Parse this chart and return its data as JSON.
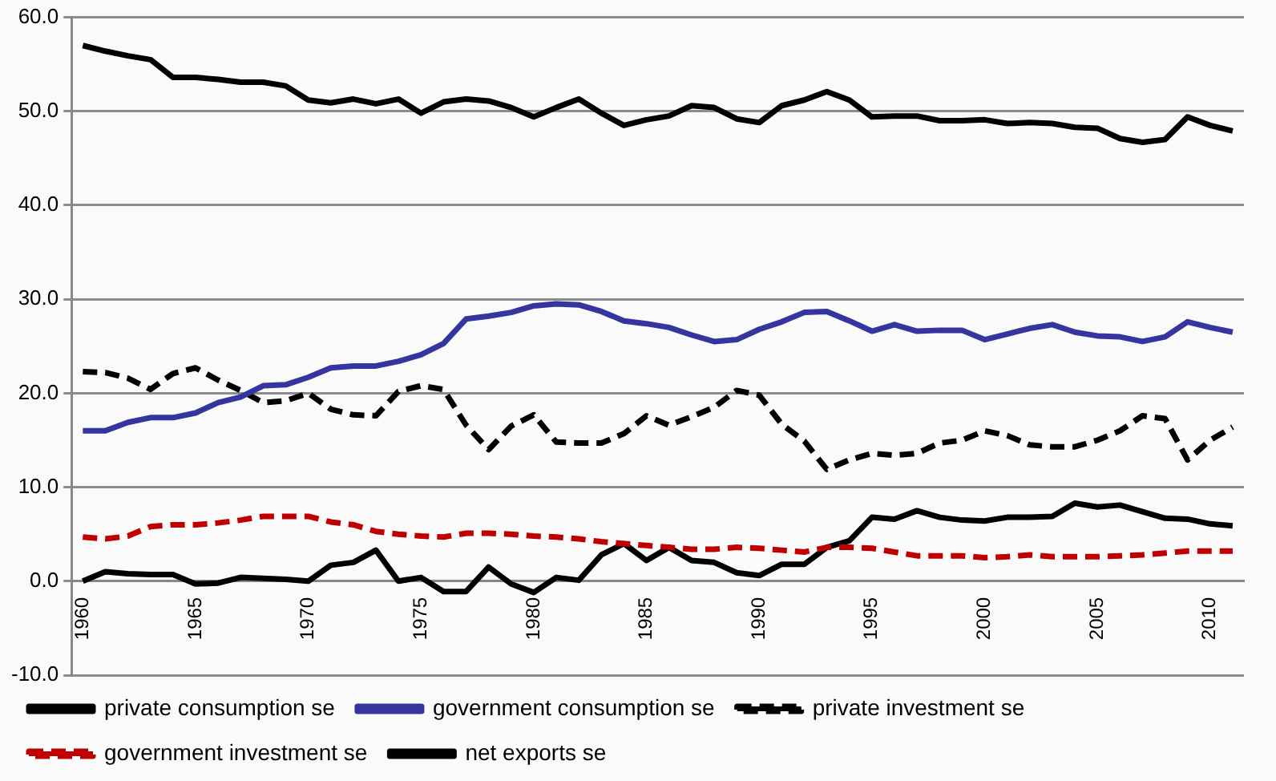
{
  "chart_data": {
    "type": "line",
    "categories": [
      "1960",
      null,
      null,
      null,
      null,
      "1965",
      null,
      null,
      null,
      null,
      "1970",
      null,
      null,
      null,
      null,
      "1975",
      null,
      null,
      null,
      null,
      "1980",
      null,
      null,
      null,
      null,
      "1985",
      null,
      null,
      null,
      null,
      "1990",
      null,
      null,
      null,
      null,
      "1995",
      null,
      null,
      null,
      null,
      "2000",
      null,
      null,
      null,
      null,
      "2005",
      null,
      null,
      null,
      null,
      "2010",
      null
    ],
    "series": [
      {
        "name": "private consumption se",
        "color": "#000000",
        "line_style": "solid",
        "values": [
          57.0,
          56.4,
          55.9,
          55.5,
          53.6,
          53.6,
          53.4,
          53.1,
          53.1,
          52.7,
          51.2,
          50.9,
          51.3,
          50.8,
          51.3,
          49.8,
          51.0,
          51.3,
          51.1,
          50.4,
          49.4,
          50.4,
          51.3,
          49.8,
          48.5,
          49.1,
          49.5,
          50.6,
          50.4,
          49.2,
          48.8,
          50.6,
          51.2,
          52.1,
          51.2,
          49.4,
          49.5,
          49.5,
          49.0,
          49.0,
          49.1,
          48.7,
          48.8,
          48.7,
          48.3,
          48.2,
          47.1,
          46.7,
          47.0,
          49.4,
          48.5,
          47.9
        ]
      },
      {
        "name": "government consumption se",
        "color": "#3535a0",
        "line_style": "solid",
        "values": [
          16.0,
          16.0,
          16.9,
          17.4,
          17.4,
          17.9,
          19.0,
          19.6,
          20.8,
          20.9,
          21.7,
          22.7,
          22.9,
          22.9,
          23.4,
          24.1,
          25.3,
          27.9,
          28.2,
          28.6,
          29.3,
          29.5,
          29.4,
          28.7,
          27.7,
          27.4,
          27.0,
          26.2,
          25.5,
          25.7,
          26.8,
          27.6,
          28.6,
          28.7,
          27.7,
          26.6,
          27.3,
          26.6,
          26.7,
          26.7,
          25.7,
          26.3,
          26.9,
          27.3,
          26.5,
          26.1,
          26.0,
          25.5,
          26.0,
          27.6,
          27.0,
          26.5
        ]
      },
      {
        "name": "private investment se",
        "color": "#000000",
        "line_style": "dashed",
        "values": [
          22.3,
          22.2,
          21.6,
          20.4,
          22.1,
          22.7,
          21.4,
          20.3,
          19.0,
          19.2,
          20.0,
          18.3,
          17.7,
          17.6,
          20.2,
          20.8,
          20.4,
          16.6,
          14.0,
          16.5,
          17.7,
          14.8,
          14.7,
          14.7,
          15.7,
          17.6,
          16.6,
          17.5,
          18.5,
          20.3,
          19.8,
          16.7,
          14.9,
          11.9,
          12.9,
          13.6,
          13.4,
          13.6,
          14.7,
          15.0,
          16.0,
          15.5,
          14.5,
          14.3,
          14.3,
          15.0,
          16.0,
          17.6,
          17.3,
          12.9,
          15.0,
          16.4
        ]
      },
      {
        "name": "government investment se",
        "color": "#c00000",
        "line_style": "dashed",
        "values": [
          4.7,
          4.5,
          4.8,
          5.8,
          6.0,
          6.0,
          6.2,
          6.5,
          6.9,
          6.9,
          6.9,
          6.3,
          6.0,
          5.3,
          5.0,
          4.8,
          4.7,
          5.1,
          5.1,
          5.0,
          4.8,
          4.7,
          4.5,
          4.2,
          4.0,
          3.8,
          3.6,
          3.4,
          3.4,
          3.6,
          3.5,
          3.3,
          3.1,
          3.6,
          3.6,
          3.5,
          3.1,
          2.7,
          2.7,
          2.7,
          2.5,
          2.6,
          2.8,
          2.6,
          2.6,
          2.6,
          2.7,
          2.8,
          3.0,
          3.2,
          3.2,
          3.2
        ]
      },
      {
        "name": "net exports se",
        "color": "#000000",
        "line_style": "solid",
        "values": [
          0.0,
          1.0,
          0.8,
          0.7,
          0.7,
          -0.3,
          -0.2,
          0.4,
          0.3,
          0.2,
          0.0,
          1.7,
          2.0,
          3.3,
          0.0,
          0.4,
          -1.1,
          -1.1,
          1.5,
          -0.3,
          -1.2,
          0.4,
          0.1,
          2.8,
          4.0,
          2.2,
          3.6,
          2.2,
          2.0,
          0.9,
          0.6,
          1.8,
          1.8,
          3.6,
          4.3,
          6.8,
          6.6,
          7.5,
          6.8,
          6.5,
          6.4,
          6.8,
          6.8,
          6.9,
          8.3,
          7.9,
          8.1,
          7.4,
          6.7,
          6.6,
          6.1,
          5.9
        ]
      }
    ],
    "ylim": [
      -10,
      60
    ],
    "yticks": [
      {
        "value": -10,
        "label": "-10.0"
      },
      {
        "value": 0,
        "label": "0.0"
      },
      {
        "value": 10,
        "label": "10.0"
      },
      {
        "value": 20,
        "label": "20.0"
      },
      {
        "value": 30,
        "label": "30.0"
      },
      {
        "value": 40,
        "label": "40.0"
      },
      {
        "value": 50,
        "label": "50.0"
      },
      {
        "value": 60,
        "label": "60.0"
      }
    ],
    "grid": "y",
    "legend": "bottom",
    "marker": "none"
  }
}
